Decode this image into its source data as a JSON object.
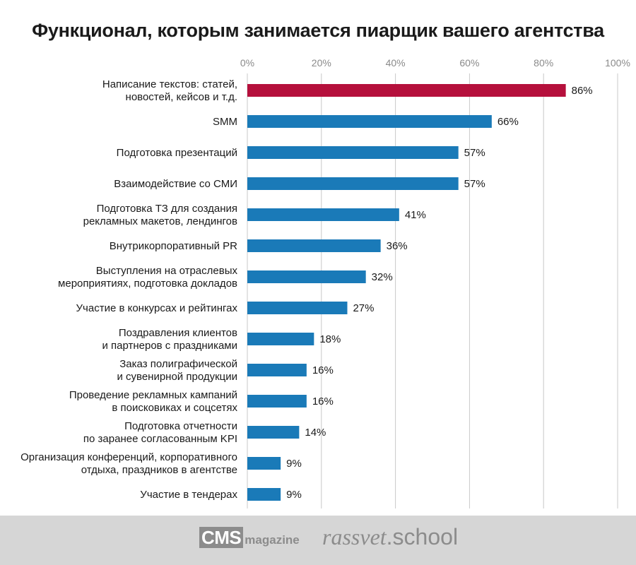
{
  "chart_data": {
    "type": "bar",
    "orientation": "horizontal",
    "title": "Функционал, которым занимается пиарщик вашего агентства",
    "xlim": [
      0,
      100
    ],
    "x_ticks": [
      "0%",
      "20%",
      "40%",
      "60%",
      "80%",
      "100%"
    ],
    "x_tick_values": [
      0,
      20,
      40,
      60,
      80,
      100
    ],
    "x_axis_position": "top",
    "grid": true,
    "value_suffix": "%",
    "highlight_color": "#b5103c",
    "bar_color": "#1a7ab8",
    "categories": [
      "Написание текстов: статей,\nновостей, кейсов и т.д.",
      "SMM",
      "Подготовка презентаций",
      "Взаимодействие со СМИ",
      "Подготовка ТЗ для создания\nрекламных макетов, лендингов",
      "Внутрикорпоративный PR",
      "Выступления на отраслевых\nмероприятиях, подготовка докладов",
      "Участие в конкурсах и рейтингах",
      "Поздравления клиентов\nи партнеров с праздниками",
      "Заказ полиграфической\nи сувенирной продукции",
      "Проведение рекламных кампаний\nв поисковиках и соцсетях",
      "Подготовка отчетности\nпо заранее согласованным KPI",
      "Организация конференций, корпоративного\nотдыха, праздников в агентстве",
      "Участие в тендерах"
    ],
    "values": [
      86,
      66,
      57,
      57,
      41,
      36,
      32,
      27,
      18,
      16,
      16,
      14,
      9,
      9
    ],
    "labels": [
      "86%",
      "66%",
      "57%",
      "57%",
      "41%",
      "36%",
      "32%",
      "27%",
      "18%",
      "16%",
      "16%",
      "14%",
      "9%",
      "9%"
    ],
    "highlighted_index": 0
  },
  "footer": {
    "cms_box": "CMS",
    "cms_sub": "magazine",
    "rassvet_a": "rassvet",
    "rassvet_b": ".school",
    "background": "#d6d6d6"
  }
}
